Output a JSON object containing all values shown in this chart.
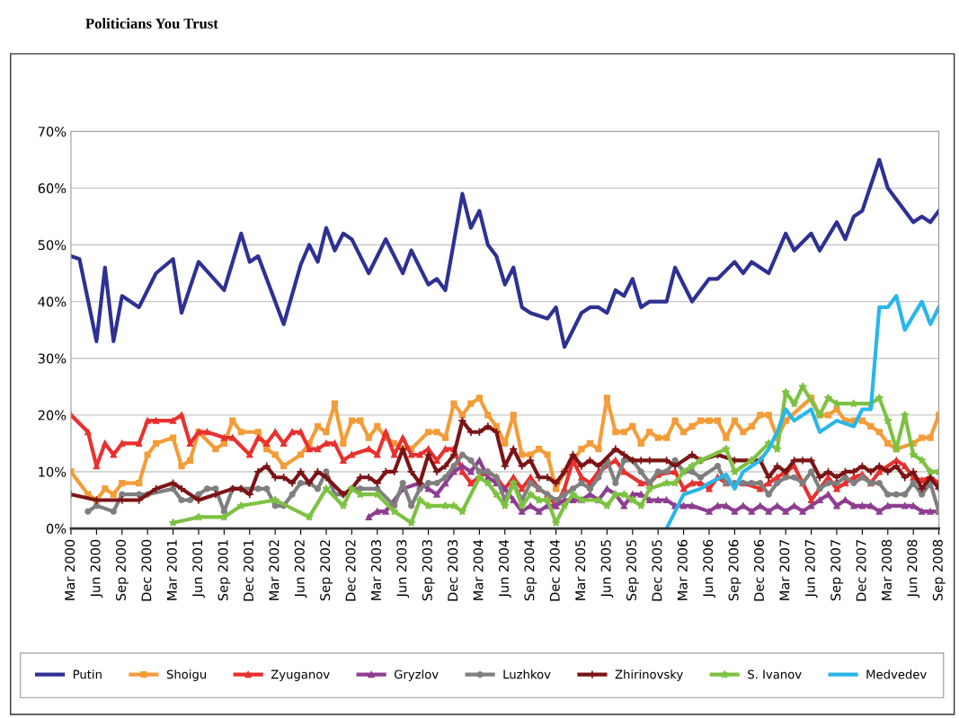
{
  "chart_data": {
    "type": "line",
    "title": "Politicians You Trust",
    "ylim": [
      0,
      70
    ],
    "yticks": [
      {
        "value": 0,
        "label": "0%"
      },
      {
        "value": 10,
        "label": "10%"
      },
      {
        "value": 20,
        "label": "20%"
      },
      {
        "value": 30,
        "label": "30%"
      },
      {
        "value": 40,
        "label": "40%"
      },
      {
        "value": 50,
        "label": "50%"
      },
      {
        "value": 60,
        "label": "60%"
      },
      {
        "value": 70,
        "label": "70%"
      }
    ],
    "xlim": [
      "2000-03",
      "2008-09"
    ],
    "xticks": [
      {
        "value": "2000-03",
        "label": "Mar 2000"
      },
      {
        "value": "2000-06",
        "label": "Jun 2000"
      },
      {
        "value": "2000-09",
        "label": "Sep 2000"
      },
      {
        "value": "2000-12",
        "label": "Dec 2000"
      },
      {
        "value": "2001-03",
        "label": "Mar 2001"
      },
      {
        "value": "2001-06",
        "label": "Jun 2001"
      },
      {
        "value": "2001-09",
        "label": "Sep 2001"
      },
      {
        "value": "2001-12",
        "label": "Dec 2001"
      },
      {
        "value": "2002-03",
        "label": "Mar 2002"
      },
      {
        "value": "2002-06",
        "label": "Jun 2002"
      },
      {
        "value": "2002-09",
        "label": "Sep 2002"
      },
      {
        "value": "2002-12",
        "label": "Dec 2002"
      },
      {
        "value": "2003-03",
        "label": "Mar 2003"
      },
      {
        "value": "2003-06",
        "label": "Jun 2003"
      },
      {
        "value": "2003-09",
        "label": "Sep 2003"
      },
      {
        "value": "2003-12",
        "label": "Dec 2003"
      },
      {
        "value": "2004-03",
        "label": "Mar 2004"
      },
      {
        "value": "2004-06",
        "label": "Jun 2004"
      },
      {
        "value": "2004-09",
        "label": "Sep 2004"
      },
      {
        "value": "2004-12",
        "label": "Dec 2004"
      },
      {
        "value": "2005-03",
        "label": "Mar 2005"
      },
      {
        "value": "2005-06",
        "label": "Jun 2005"
      },
      {
        "value": "2005-09",
        "label": "Sep 2005"
      },
      {
        "value": "2005-12",
        "label": "Dec 2005"
      },
      {
        "value": "2006-03",
        "label": "Mar 2006"
      },
      {
        "value": "2006-06",
        "label": "Jun 2006"
      },
      {
        "value": "2006-09",
        "label": "Sep 2006"
      },
      {
        "value": "2006-12",
        "label": "Dec 2006"
      },
      {
        "value": "2007-03",
        "label": "Mar 2007"
      },
      {
        "value": "2007-06",
        "label": "Jun 2007"
      },
      {
        "value": "2007-09",
        "label": "Sep 2007"
      },
      {
        "value": "2007-12",
        "label": "Dec 2007"
      },
      {
        "value": "2008-03",
        "label": "Mar 2008"
      },
      {
        "value": "2008-06",
        "label": "Jun 2008"
      },
      {
        "value": "2008-09",
        "label": "Sep 2008"
      }
    ],
    "grid": "y",
    "legend": "bottom",
    "line_style": "solid",
    "series": [
      {
        "name": "Putin",
        "color": "#2e3192",
        "marker": "none",
        "x": [
          "2000-03",
          "2000-04",
          "2000-06",
          "2000-07",
          "2000-08",
          "2000-09",
          "2000-11",
          "2001-01",
          "2001-03",
          "2001-04",
          "2001-06",
          "2001-09",
          "2001-11",
          "2001-12",
          "2002-01",
          "2002-04",
          "2002-06",
          "2002-07",
          "2002-08",
          "2002-09",
          "2002-10",
          "2002-11",
          "2002-12",
          "2003-02",
          "2003-04",
          "2003-06",
          "2003-07",
          "2003-09",
          "2003-10",
          "2003-11",
          "2004-01",
          "2004-02",
          "2004-03",
          "2004-04",
          "2004-05",
          "2004-06",
          "2004-07",
          "2004-08",
          "2004-09",
          "2004-11",
          "2004-12",
          "2005-01",
          "2005-03",
          "2005-04",
          "2005-05",
          "2005-06",
          "2005-07",
          "2005-08",
          "2005-09",
          "2005-10",
          "2005-11",
          "2006-01",
          "2006-02",
          "2006-04",
          "2006-06",
          "2006-07",
          "2006-09",
          "2006-10",
          "2006-11",
          "2007-01",
          "2007-03",
          "2007-04",
          "2007-06",
          "2007-07",
          "2007-09",
          "2007-10",
          "2007-11",
          "2007-12",
          "2008-02",
          "2008-03",
          "2008-06",
          "2008-07",
          "2008-08",
          "2008-09"
        ],
        "values": [
          48,
          47.5,
          33,
          46,
          33,
          41,
          39,
          45,
          47.5,
          38,
          47,
          42,
          52,
          47,
          48,
          36,
          46.5,
          50,
          47,
          53,
          49,
          52,
          51,
          45,
          51,
          45,
          49,
          43,
          44,
          42,
          59,
          53,
          56,
          50,
          48,
          43,
          46,
          39,
          38,
          37,
          39,
          32,
          38,
          39,
          39,
          38,
          42,
          41,
          44,
          39,
          40,
          40,
          46,
          40,
          44,
          44,
          47,
          45,
          47,
          45,
          52,
          49,
          52,
          49,
          54,
          51,
          55,
          56,
          65,
          60,
          54,
          55,
          54,
          56
        ]
      },
      {
        "name": "Shoigu",
        "color": "#f39c38",
        "marker": "square",
        "x": [
          "2000-03",
          "2000-05",
          "2000-06",
          "2000-07",
          "2000-08",
          "2000-09",
          "2000-11",
          "2000-12",
          "2001-01",
          "2001-03",
          "2001-04",
          "2001-05",
          "2001-06",
          "2001-08",
          "2001-09",
          "2001-10",
          "2001-11",
          "2002-01",
          "2002-02",
          "2002-03",
          "2002-04",
          "2002-06",
          "2002-07",
          "2002-08",
          "2002-09",
          "2002-10",
          "2002-11",
          "2002-12",
          "2003-01",
          "2003-02",
          "2003-03",
          "2003-04",
          "2003-05",
          "2003-06",
          "2003-07",
          "2003-09",
          "2003-10",
          "2003-11",
          "2003-12",
          "2004-01",
          "2004-02",
          "2004-03",
          "2004-04",
          "2004-05",
          "2004-06",
          "2004-07",
          "2004-08",
          "2004-09",
          "2004-10",
          "2004-11",
          "2004-12",
          "2005-01",
          "2005-03",
          "2005-04",
          "2005-05",
          "2005-06",
          "2005-07",
          "2005-08",
          "2005-09",
          "2005-10",
          "2005-11",
          "2005-12",
          "2006-01",
          "2006-02",
          "2006-03",
          "2006-04",
          "2006-05",
          "2006-06",
          "2006-07",
          "2006-08",
          "2006-09",
          "2006-10",
          "2006-11",
          "2006-12",
          "2007-01",
          "2007-02",
          "2007-03",
          "2007-06",
          "2007-07",
          "2007-08",
          "2007-09",
          "2007-10",
          "2007-11",
          "2007-12",
          "2008-01",
          "2008-02",
          "2008-03",
          "2008-04",
          "2008-06",
          "2008-07",
          "2008-08",
          "2008-09"
        ],
        "values": [
          10,
          6,
          5,
          7,
          6,
          8,
          8,
          13,
          15,
          16,
          11,
          12,
          17,
          14,
          15,
          19,
          17,
          17,
          14,
          13,
          11,
          13,
          15,
          18,
          17,
          22,
          15,
          19,
          19,
          16,
          18,
          16,
          15,
          14,
          14,
          17,
          17,
          16,
          22,
          20,
          22,
          23,
          20,
          18,
          15,
          20,
          13,
          13,
          14,
          13,
          7,
          10,
          14,
          15,
          14,
          23,
          17,
          17,
          18,
          15,
          17,
          16,
          16,
          19,
          17,
          18,
          19,
          19,
          19,
          16,
          19,
          17,
          18,
          20,
          20,
          16,
          19,
          23,
          20,
          20,
          21,
          19,
          19,
          19,
          18,
          17,
          15,
          14,
          15,
          16,
          16,
          20
        ]
      },
      {
        "name": "Zyuganov",
        "color": "#e8312f",
        "marker": "triangle",
        "x": [
          "2000-03",
          "2000-05",
          "2000-06",
          "2000-07",
          "2000-08",
          "2000-09",
          "2000-11",
          "2000-12",
          "2001-01",
          "2001-03",
          "2001-04",
          "2001-05",
          "2001-06",
          "2001-07",
          "2001-09",
          "2001-10",
          "2001-12",
          "2002-01",
          "2002-02",
          "2002-03",
          "2002-04",
          "2002-05",
          "2002-06",
          "2002-07",
          "2002-08",
          "2002-09",
          "2002-10",
          "2002-11",
          "2002-12",
          "2003-02",
          "2003-03",
          "2003-04",
          "2003-05",
          "2003-06",
          "2003-07",
          "2003-08",
          "2003-09",
          "2003-10",
          "2003-11",
          "2003-12",
          "2004-01",
          "2004-02",
          "2004-03",
          "2004-04",
          "2004-05",
          "2004-06",
          "2004-07",
          "2004-08",
          "2004-09",
          "2004-10",
          "2004-11",
          "2004-12",
          "2005-01",
          "2005-02",
          "2005-03",
          "2005-04",
          "2005-05",
          "2005-07",
          "2005-08",
          "2005-10",
          "2005-11",
          "2005-12",
          "2006-02",
          "2006-03",
          "2006-04",
          "2006-05",
          "2006-06",
          "2006-07",
          "2006-08",
          "2006-10",
          "2006-12",
          "2007-01",
          "2007-02",
          "2007-03",
          "2007-04",
          "2007-05",
          "2007-06",
          "2007-08",
          "2007-09",
          "2007-10",
          "2007-11",
          "2007-12",
          "2008-01",
          "2008-02",
          "2008-04",
          "2008-05",
          "2008-06",
          "2008-07",
          "2008-08",
          "2008-09"
        ],
        "values": [
          20,
          17,
          11,
          15,
          13,
          15,
          15,
          19,
          19,
          19,
          20,
          15,
          17,
          17,
          16,
          16,
          13,
          16,
          15,
          17,
          15,
          17,
          17,
          14,
          14,
          15,
          15,
          12,
          13,
          14,
          13,
          17,
          13,
          16,
          13,
          13,
          14,
          12,
          14,
          14,
          10,
          8,
          9,
          10,
          9,
          7,
          9,
          7,
          9,
          7,
          6,
          4,
          7,
          12,
          9,
          8,
          10,
          12,
          10,
          8,
          8,
          9.5,
          10,
          7,
          8,
          8,
          7,
          9,
          8,
          8,
          7,
          8,
          9,
          10,
          11,
          8,
          5,
          9,
          7,
          8,
          9,
          9.5,
          8,
          10,
          12,
          11,
          9,
          8.5,
          9,
          8
        ]
      },
      {
        "name": "Gryzlov",
        "color": "#8e3e91",
        "marker": "triangle",
        "x": [
          "2003-02",
          "2003-03",
          "2003-04",
          "2003-06",
          "2003-08",
          "2003-09",
          "2003-10",
          "2003-11",
          "2003-12",
          "2004-01",
          "2004-02",
          "2004-03",
          "2004-04",
          "2004-05",
          "2004-06",
          "2004-07",
          "2004-08",
          "2004-09",
          "2004-10",
          "2004-11",
          "2004-12",
          "2005-01",
          "2005-02",
          "2005-03",
          "2005-04",
          "2005-05",
          "2005-06",
          "2005-07",
          "2005-08",
          "2005-09",
          "2005-10",
          "2005-11",
          "2005-12",
          "2006-01",
          "2006-02",
          "2006-03",
          "2006-04",
          "2006-06",
          "2006-07",
          "2006-08",
          "2006-09",
          "2006-10",
          "2006-11",
          "2006-12",
          "2007-01",
          "2007-02",
          "2007-03",
          "2007-04",
          "2007-05",
          "2007-06",
          "2007-07",
          "2007-08",
          "2007-09",
          "2007-10",
          "2007-11",
          "2007-12",
          "2008-01",
          "2008-02",
          "2008-03",
          "2008-05",
          "2008-06",
          "2008-07",
          "2008-08",
          "2008-09"
        ],
        "values": [
          2,
          3,
          3,
          7,
          8,
          7,
          6,
          8,
          10,
          11,
          10,
          12,
          9,
          8,
          7,
          5,
          3,
          4,
          3,
          4,
          4,
          5,
          5,
          5,
          6,
          5,
          7,
          6,
          4,
          6,
          6,
          5,
          5,
          5,
          4,
          4,
          4,
          3,
          4,
          4,
          3,
          4,
          3,
          4,
          3,
          4,
          3,
          4,
          3,
          4,
          5,
          6,
          4,
          5,
          4,
          4,
          4,
          3,
          4,
          4,
          4,
          3,
          3,
          3
        ]
      },
      {
        "name": "Luzhkov",
        "color": "#7f7f7f",
        "marker": "circle",
        "x": [
          "2000-05",
          "2000-06",
          "2000-08",
          "2000-09",
          "2000-11",
          "2000-12",
          "2001-03",
          "2001-04",
          "2001-05",
          "2001-06",
          "2001-07",
          "2001-08",
          "2001-09",
          "2001-10",
          "2001-11",
          "2002-01",
          "2002-02",
          "2002-03",
          "2002-04",
          "2002-05",
          "2002-06",
          "2002-07",
          "2002-08",
          "2002-09",
          "2002-10",
          "2002-11",
          "2002-12",
          "2003-01",
          "2003-03",
          "2003-05",
          "2003-06",
          "2003-07",
          "2003-08",
          "2003-09",
          "2003-10",
          "2003-11",
          "2003-12",
          "2004-01",
          "2004-02",
          "2004-03",
          "2004-04",
          "2004-05",
          "2004-06",
          "2004-07",
          "2004-08",
          "2004-09",
          "2004-10",
          "2004-11",
          "2004-12",
          "2005-01",
          "2005-02",
          "2005-03",
          "2005-04",
          "2005-05",
          "2005-06",
          "2005-07",
          "2005-08",
          "2005-09",
          "2005-10",
          "2005-11",
          "2005-12",
          "2006-01",
          "2006-02",
          "2006-03",
          "2006-04",
          "2006-05",
          "2006-07",
          "2006-08",
          "2006-09",
          "2006-10",
          "2006-11",
          "2006-12",
          "2007-01",
          "2007-02",
          "2007-03",
          "2007-04",
          "2007-05",
          "2007-06",
          "2007-07",
          "2007-08",
          "2007-09",
          "2007-10",
          "2007-11",
          "2007-12",
          "2008-01",
          "2008-02",
          "2008-03",
          "2008-04",
          "2008-05",
          "2008-06",
          "2008-07",
          "2008-08",
          "2008-09"
        ],
        "values": [
          3,
          4,
          3,
          6,
          6,
          6,
          7,
          5,
          5,
          6,
          7,
          7,
          3,
          7,
          7,
          7,
          7,
          4,
          4,
          6,
          8,
          8,
          7,
          10,
          6,
          6,
          7,
          7,
          7,
          4,
          8,
          4,
          7,
          8,
          8,
          9,
          11,
          13,
          12,
          10,
          10,
          9,
          5,
          8,
          5,
          8,
          7,
          6,
          5,
          6,
          7,
          8,
          7,
          9,
          12,
          8,
          12,
          12,
          10,
          8,
          10,
          10,
          12,
          10,
          10,
          9,
          11,
          8,
          8,
          8,
          8,
          8,
          6,
          8,
          9,
          9,
          8,
          10,
          7,
          8,
          8,
          9,
          8,
          9,
          8,
          8,
          6,
          6,
          6,
          8,
          6,
          8,
          3
        ]
      },
      {
        "name": "Zhirinovsky",
        "color": "#7b1416",
        "marker": "cross",
        "x": [
          "2000-03",
          "2000-06",
          "2000-09",
          "2000-11",
          "2001-01",
          "2001-03",
          "2001-04",
          "2001-06",
          "2001-08",
          "2001-10",
          "2001-11",
          "2001-12",
          "2002-01",
          "2002-02",
          "2002-03",
          "2002-04",
          "2002-05",
          "2002-06",
          "2002-07",
          "2002-08",
          "2002-09",
          "2002-11",
          "2002-12",
          "2003-01",
          "2003-02",
          "2003-03",
          "2003-04",
          "2003-05",
          "2003-06",
          "2003-07",
          "2003-08",
          "2003-09",
          "2003-10",
          "2003-11",
          "2003-12",
          "2004-01",
          "2004-02",
          "2004-03",
          "2004-04",
          "2004-05",
          "2004-06",
          "2004-07",
          "2004-08",
          "2004-09",
          "2004-10",
          "2004-11",
          "2004-12",
          "2005-01",
          "2005-02",
          "2005-03",
          "2005-04",
          "2005-05",
          "2005-07",
          "2005-08",
          "2005-09",
          "2005-10",
          "2005-11",
          "2006-01",
          "2006-02",
          "2006-04",
          "2006-05",
          "2006-07",
          "2006-09",
          "2006-11",
          "2006-12",
          "2007-01",
          "2007-02",
          "2007-03",
          "2007-04",
          "2007-05",
          "2007-06",
          "2007-07",
          "2007-08",
          "2007-09",
          "2007-10",
          "2007-11",
          "2007-12",
          "2008-01",
          "2008-02",
          "2008-03",
          "2008-04",
          "2008-05",
          "2008-06",
          "2008-07",
          "2008-08",
          "2008-09"
        ],
        "values": [
          6,
          5,
          5,
          5,
          7,
          8,
          7,
          5,
          6,
          7,
          7,
          6,
          10,
          11,
          9,
          9,
          8,
          10,
          8,
          10,
          9,
          6,
          7,
          9,
          9,
          8,
          10,
          10,
          14,
          10,
          8,
          13,
          10,
          11,
          13,
          19,
          17,
          17,
          18,
          17,
          11,
          14,
          11,
          12,
          9,
          9,
          8,
          10,
          13,
          11,
          12,
          11,
          14,
          13,
          12,
          12,
          12,
          12,
          11,
          13,
          12,
          13,
          12,
          12,
          12,
          9,
          11,
          10,
          12,
          12,
          12,
          9,
          10,
          9,
          10,
          10,
          11,
          10,
          11,
          10,
          11,
          9,
          10,
          7,
          9,
          7
        ]
      },
      {
        "name": "S. Ivanov",
        "color": "#7dc242",
        "marker": "star",
        "x": [
          "2001-03",
          "2001-06",
          "2001-09",
          "2001-11",
          "2002-03",
          "2002-07",
          "2002-09",
          "2002-11",
          "2002-12",
          "2003-01",
          "2003-03",
          "2003-05",
          "2003-07",
          "2003-08",
          "2003-09",
          "2003-11",
          "2003-12",
          "2004-01",
          "2004-03",
          "2004-04",
          "2004-05",
          "2004-06",
          "2004-07",
          "2004-08",
          "2004-09",
          "2004-10",
          "2004-11",
          "2004-12",
          "2005-01",
          "2005-02",
          "2005-03",
          "2005-05",
          "2005-06",
          "2005-07",
          "2005-08",
          "2005-09",
          "2005-10",
          "2005-11",
          "2006-01",
          "2006-02",
          "2006-03",
          "2006-04",
          "2006-05",
          "2006-08",
          "2006-09",
          "2006-11",
          "2007-01",
          "2007-02",
          "2007-03",
          "2007-04",
          "2007-05",
          "2007-07",
          "2007-08",
          "2007-09",
          "2007-11",
          "2008-01",
          "2008-02",
          "2008-03",
          "2008-04",
          "2008-05",
          "2008-06",
          "2008-07",
          "2008-08",
          "2008-09"
        ],
        "values": [
          1,
          2,
          2,
          4,
          5,
          2,
          7,
          4,
          7,
          6,
          6,
          3,
          1,
          5,
          4,
          4,
          4,
          3,
          9,
          8,
          6,
          4,
          8,
          4,
          6,
          5,
          5,
          1,
          4,
          6,
          5,
          5,
          4,
          6,
          6,
          5,
          4,
          7,
          8,
          8,
          10,
          11,
          12,
          14,
          10,
          12,
          15,
          14,
          24,
          22,
          25,
          20,
          23,
          22,
          22,
          22,
          23,
          19,
          14,
          20,
          13,
          12,
          10,
          10
        ]
      },
      {
        "name": "Medvedev",
        "color": "#29b6e8",
        "marker": "none",
        "x": [
          "2006-01",
          "2006-03",
          "2006-05",
          "2006-06",
          "2006-08",
          "2006-09",
          "2006-10",
          "2006-12",
          "2007-01",
          "2007-02",
          "2007-03",
          "2007-04",
          "2007-06",
          "2007-07",
          "2007-09",
          "2007-11",
          "2007-12",
          "2008-01",
          "2008-02",
          "2008-03",
          "2008-04",
          "2008-05",
          "2008-07",
          "2008-08",
          "2008-09"
        ],
        "values": [
          0,
          6,
          7,
          8,
          9.5,
          7,
          10,
          12,
          14,
          17,
          21,
          19,
          21,
          17,
          19,
          18,
          21,
          21,
          39,
          39,
          41,
          35,
          40,
          36,
          39
        ]
      }
    ]
  }
}
